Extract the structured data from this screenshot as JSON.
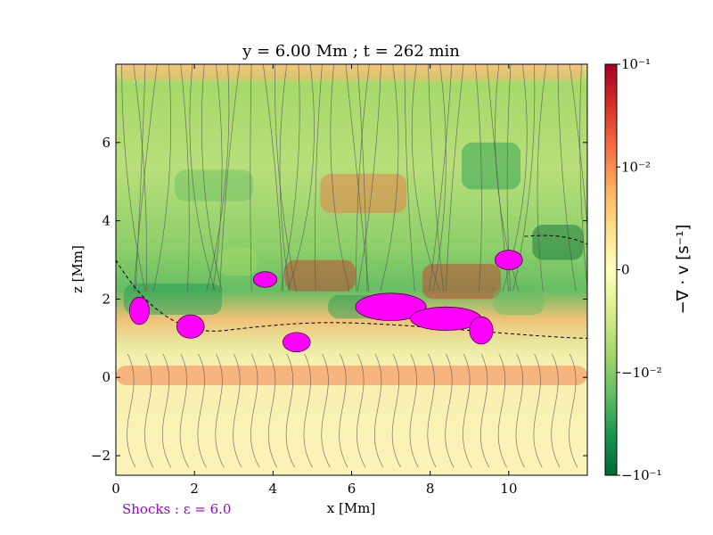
{
  "chart_data": {
    "type": "heatmap",
    "title": "y = 6.00 Mm ; t = 262 min",
    "xlabel": "x [Mm]",
    "ylabel": "z [Mm]",
    "xlim": [
      0,
      12
    ],
    "ylim": [
      -2.5,
      8
    ],
    "x_ticks": [
      0,
      2,
      4,
      6,
      8,
      10
    ],
    "y_ticks": [
      -2,
      0,
      2,
      4,
      6
    ],
    "colorbar": {
      "label": "−∇ · v [s⁻¹]",
      "scale": "symlog",
      "range": [
        -0.1,
        0.1
      ],
      "colormap": "RdYlGn_r",
      "ticks": [
        "10⁻¹",
        "10⁻²",
        "0",
        "−10⁻²",
        "−10⁻¹"
      ],
      "tick_values": [
        0.1,
        0.01,
        0,
        -0.01,
        -0.1
      ],
      "colors": [
        "#a50026",
        "#d73027",
        "#f46d43",
        "#fdae61",
        "#fee08b",
        "#ffffbf",
        "#d9ef8b",
        "#a6d96a",
        "#66bd63",
        "#1a9850",
        "#006837"
      ]
    },
    "overlays": {
      "shock_color": "#ff00ff",
      "shock_label": "Shocks : ε = 6.0",
      "shock_label_color": "#9400d3",
      "streamlines_color": "#555555",
      "contour_style": "black dashed"
    },
    "grid": false
  }
}
